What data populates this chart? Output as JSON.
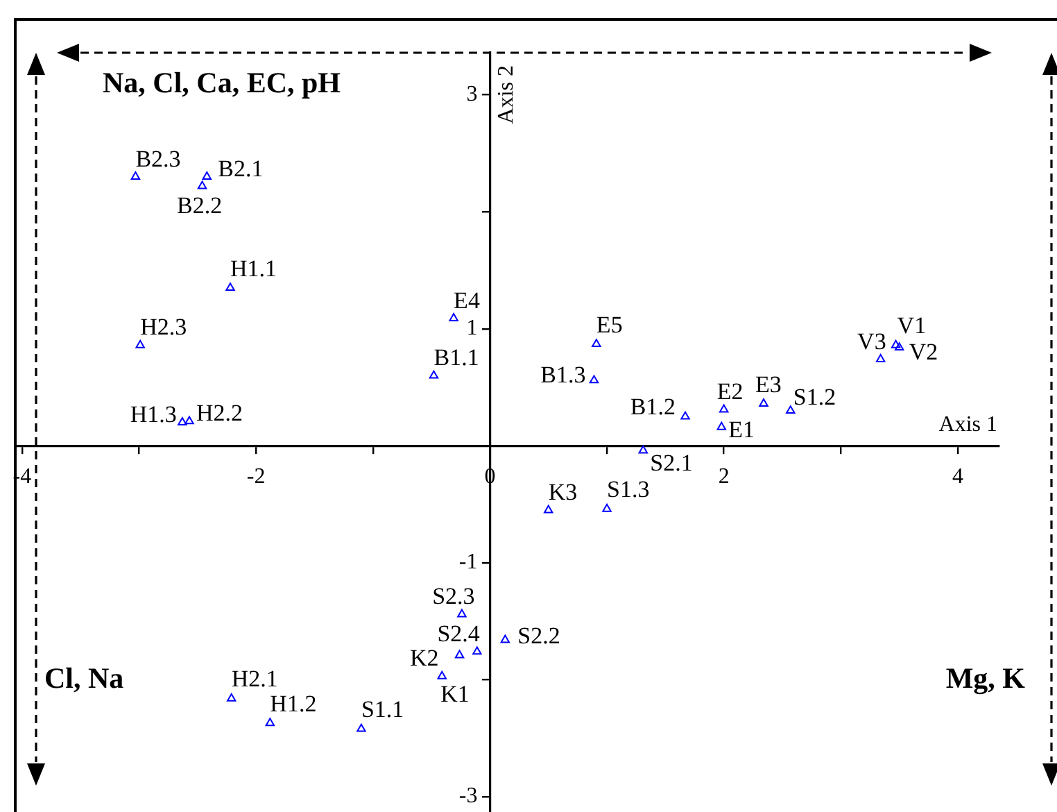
{
  "chart_data": {
    "type": "scatter",
    "xlabel": "Axis 1",
    "ylabel": "Axis 2",
    "x": [
      -3.03,
      -2.42,
      -2.46,
      -2.22,
      -2.99,
      -2.63,
      -2.57,
      -0.31,
      -0.48,
      0.91,
      0.89,
      1.67,
      2.0,
      1.98,
      2.34,
      2.57,
      3.34,
      3.47,
      3.5,
      1.31,
      0.5,
      1.0,
      0.13,
      -0.24,
      -0.11,
      -0.26,
      -0.41,
      -2.21,
      -1.88,
      -1.1
    ],
    "values": [
      2.3,
      2.3,
      2.22,
      1.35,
      0.86,
      0.2,
      0.21,
      1.09,
      0.6,
      0.87,
      0.56,
      0.25,
      0.31,
      0.16,
      0.36,
      0.3,
      0.74,
      0.86,
      0.84,
      -0.04,
      -0.55,
      -0.54,
      -1.66,
      -1.44,
      -1.76,
      -1.79,
      -1.97,
      -2.16,
      -2.37,
      -2.42
    ],
    "value_labels": [
      "B2.3",
      "B2.1",
      "B2.2",
      "H1.1",
      "H2.3",
      "H1.3",
      "H2.2",
      "E4",
      "B1.1",
      "E5",
      "B1.3",
      "B1.2",
      "E2",
      "E1",
      "E3",
      "S1.2",
      "V3",
      "V1",
      "V2",
      "S2.1",
      "K3",
      "S1.3",
      "S2.2",
      "S2.3",
      "S2.4",
      "K2",
      "K1",
      "H2.1",
      "H1.2",
      "S1.1"
    ],
    "color": "#0000ff",
    "marker": "triangle",
    "xlim": [
      -4.05,
      4.35
    ],
    "ylim": [
      -3.13,
      3.36
    ],
    "xticks": [
      -4,
      {
        "value": -3,
        "label": null
      },
      -2,
      {
        "value": -1,
        "label": null
      },
      0,
      {
        "value": 1,
        "label": null
      },
      2,
      {
        "value": 3,
        "label": null
      },
      4
    ],
    "yticks": [
      3,
      {
        "value": 2,
        "label": null
      },
      1,
      -1,
      {
        "value": -2,
        "label": null
      },
      -3
    ],
    "annotations": [
      "Na, Cl, Ca, EC, pH",
      "Cl, Na",
      "Mg, K"
    ]
  }
}
